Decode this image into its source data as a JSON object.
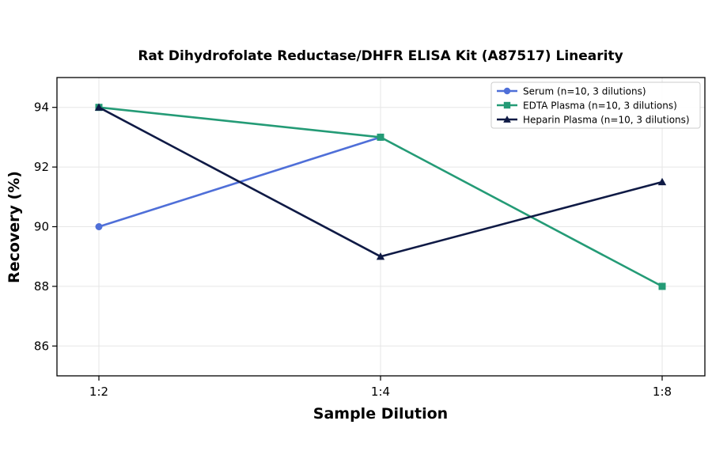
{
  "chart_data": {
    "type": "line",
    "title": "Rat Dihydrofolate Reductase/DHFR ELISA Kit (A87517) Linearity",
    "xlabel": "Sample Dilution",
    "ylabel": "Recovery (%)",
    "categories": [
      "1:2",
      "1:4",
      "1:8"
    ],
    "ylim": [
      85,
      95
    ],
    "yticks": [
      86,
      88,
      90,
      92,
      94
    ],
    "grid": true,
    "legend_position": "top-right",
    "series": [
      {
        "name": "Serum (n=10, 3 dilutions)",
        "values": [
          90,
          93,
          null
        ],
        "color": "#4f6fd8",
        "marker": "circle"
      },
      {
        "name": "EDTA Plasma (n=10, 3 dilutions)",
        "values": [
          94,
          93,
          88
        ],
        "color": "#249b76",
        "marker": "square"
      },
      {
        "name": "Heparin Plasma (n=10, 3 dilutions)",
        "values": [
          94,
          89,
          91.5
        ],
        "color": "#0f1a45",
        "marker": "triangle"
      }
    ]
  }
}
